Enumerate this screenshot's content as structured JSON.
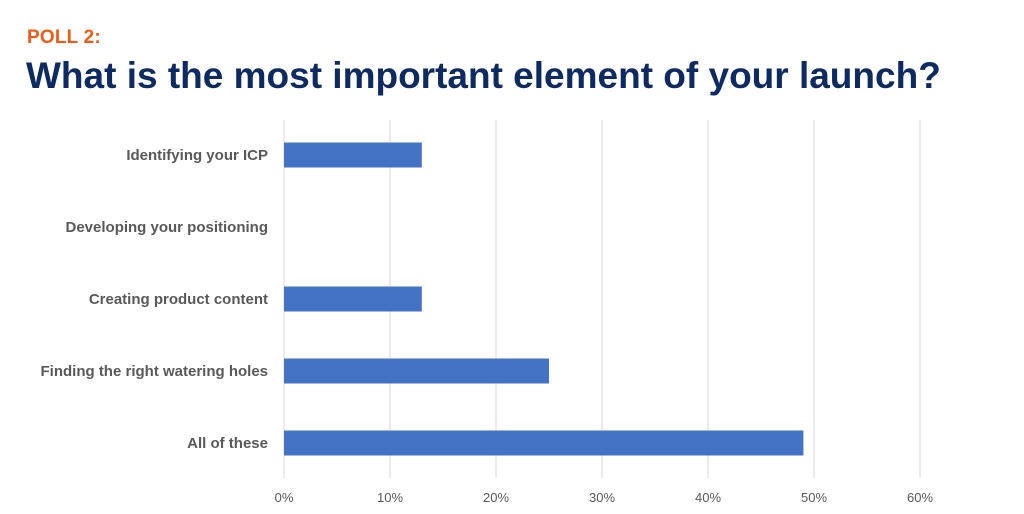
{
  "header": {
    "poll_label": "POLL 2:",
    "title": "What is the most important element of your launch?"
  },
  "colors": {
    "poll_label": "#f05a14",
    "title": "#0d2a63",
    "bar": "#4472c4",
    "grid": "#d9d9d9",
    "text": "#595959"
  },
  "chart_data": {
    "type": "bar",
    "orientation": "horizontal",
    "categories": [
      "Identifying your ICP",
      "Developing your positioning",
      "Creating product content",
      "Finding the right watering holes",
      "All of these"
    ],
    "values": [
      13,
      0,
      13,
      25,
      49
    ],
    "unit": "%",
    "xlim": [
      0,
      60
    ],
    "xticks": [
      0,
      10,
      20,
      30,
      40,
      50,
      60
    ],
    "tick_labels": [
      "0%",
      "10%",
      "20%",
      "30%",
      "40%",
      "50%",
      "60%"
    ],
    "grid": true,
    "legend": "none"
  }
}
